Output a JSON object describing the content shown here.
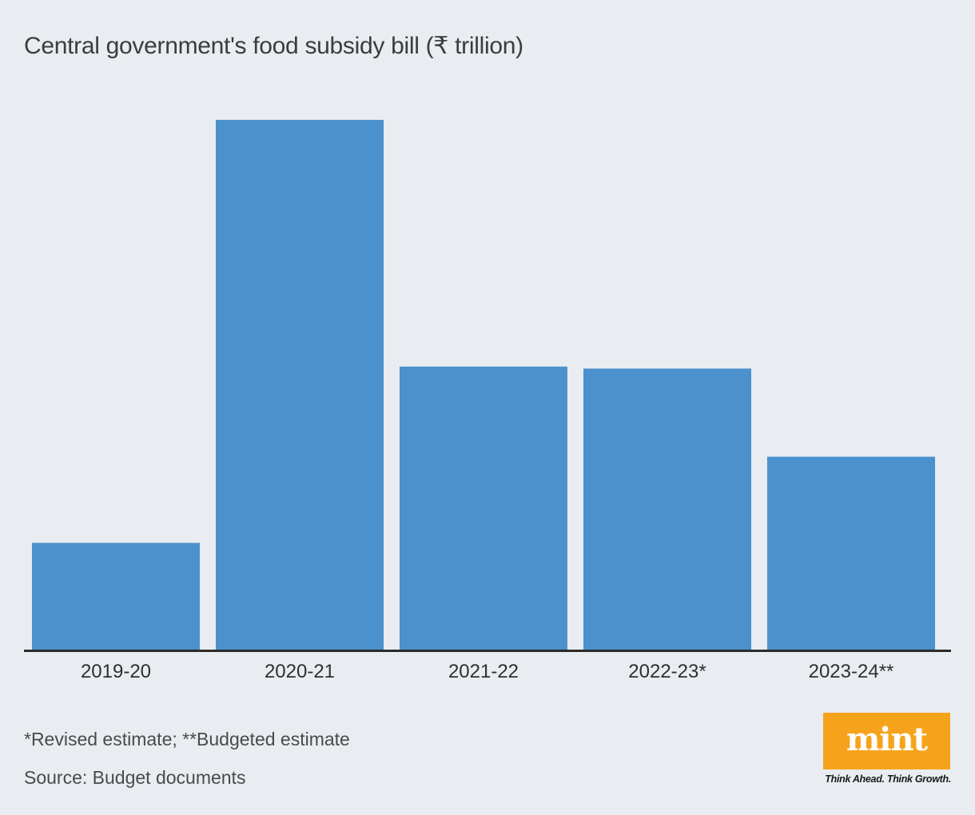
{
  "chart_data": {
    "type": "bar",
    "title": "Central government's food subsidy bill (₹ trillion)",
    "categories": [
      "2019-20",
      "2020-21",
      "2021-22",
      "2022-23*",
      "2023-24**"
    ],
    "values": [
      1.09,
      5.41,
      2.89,
      2.87,
      1.97
    ],
    "xlabel": "",
    "ylabel": "",
    "ylim": [
      0,
      5.41
    ],
    "grid": false,
    "bar_color": "#4a91cd"
  },
  "footnote": "*Revised estimate; **Budgeted estimate",
  "source": "Source: Budget documents",
  "brand": {
    "logo": "mint",
    "tagline": "Think Ahead. Think Growth.",
    "color": "#f6a31c"
  }
}
